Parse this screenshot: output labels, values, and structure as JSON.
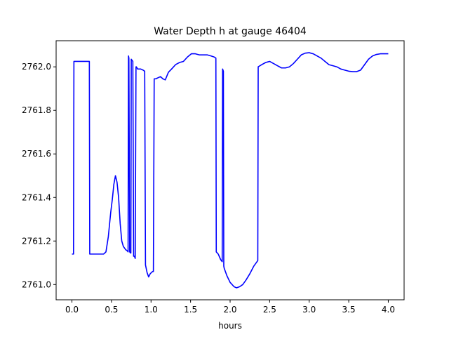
{
  "chart_data": {
    "type": "line",
    "title": "Water Depth h at gauge 46404",
    "xlabel": "hours",
    "ylabel": "",
    "xlim": [
      -0.2,
      4.2
    ],
    "ylim": [
      2760.93,
      2762.12
    ],
    "xticks": [
      0.0,
      0.5,
      1.0,
      1.5,
      2.0,
      2.5,
      3.0,
      3.5,
      4.0
    ],
    "xtick_labels": [
      "0.0",
      "0.5",
      "1.0",
      "1.5",
      "2.0",
      "2.5",
      "3.0",
      "3.5",
      "4.0"
    ],
    "yticks": [
      2761.0,
      2761.2,
      2761.4,
      2761.6,
      2761.8,
      2762.0
    ],
    "ytick_labels": [
      "2761.0",
      "2761.2",
      "2761.4",
      "2761.6",
      "2761.8",
      "2762.0"
    ],
    "grid": false,
    "series": [
      {
        "color": "#0000ff",
        "x": [
          0.0,
          0.02,
          0.025,
          0.05,
          0.1,
          0.15,
          0.2,
          0.22,
          0.225,
          0.25,
          0.3,
          0.35,
          0.4,
          0.43,
          0.46,
          0.49,
          0.51,
          0.53,
          0.55,
          0.57,
          0.59,
          0.61,
          0.63,
          0.65,
          0.68,
          0.7,
          0.71,
          0.715,
          0.72,
          0.73,
          0.74,
          0.745,
          0.75,
          0.76,
          0.77,
          0.78,
          0.79,
          0.8,
          0.81,
          0.815,
          0.82,
          0.825,
          0.83,
          0.84,
          0.85,
          0.87,
          0.9,
          0.92,
          0.93,
          0.95,
          0.97,
          0.99,
          1.02,
          1.03,
          1.04,
          1.06,
          1.09,
          1.12,
          1.15,
          1.18,
          1.22,
          1.26,
          1.31,
          1.36,
          1.41,
          1.46,
          1.51,
          1.56,
          1.61,
          1.66,
          1.71,
          1.76,
          1.8,
          1.82,
          1.825,
          1.85,
          1.88,
          1.9,
          1.905,
          1.91,
          1.915,
          1.92,
          1.925,
          1.96,
          2.0,
          2.05,
          2.08,
          2.12,
          2.16,
          2.2,
          2.25,
          2.3,
          2.35,
          2.355,
          2.4,
          2.45,
          2.5,
          2.55,
          2.6,
          2.65,
          2.7,
          2.75,
          2.8,
          2.85,
          2.9,
          2.95,
          3.0,
          3.05,
          3.1,
          3.15,
          3.2,
          3.25,
          3.3,
          3.35,
          3.4,
          3.45,
          3.5,
          3.55,
          3.6,
          3.65,
          3.7,
          3.75,
          3.8,
          3.85,
          3.9,
          3.95,
          4.0
        ],
        "y": [
          2761.14,
          2761.14,
          2762.025,
          2762.025,
          2762.025,
          2762.025,
          2762.025,
          2762.025,
          2761.14,
          2761.14,
          2761.14,
          2761.14,
          2761.14,
          2761.15,
          2761.22,
          2761.33,
          2761.39,
          2761.46,
          2761.5,
          2761.47,
          2761.4,
          2761.28,
          2761.2,
          2761.175,
          2761.16,
          2761.155,
          2761.15,
          2762.05,
          2762.04,
          2761.15,
          2761.145,
          2761.145,
          2762.035,
          2762.03,
          2762.025,
          2761.13,
          2761.13,
          2761.12,
          2762.0,
          2762.0,
          2761.995,
          2761.995,
          2761.99,
          2761.99,
          2761.99,
          2761.99,
          2761.985,
          2761.98,
          2761.09,
          2761.055,
          2761.035,
          2761.05,
          2761.06,
          2761.06,
          2761.945,
          2761.945,
          2761.95,
          2761.955,
          2761.945,
          2761.94,
          2761.975,
          2761.99,
          2762.01,
          2762.02,
          2762.025,
          2762.045,
          2762.06,
          2762.06,
          2762.055,
          2762.055,
          2762.055,
          2762.05,
          2762.045,
          2762.04,
          2761.15,
          2761.14,
          2761.115,
          2761.105,
          2761.99,
          2761.985,
          2761.98,
          2761.085,
          2761.075,
          2761.04,
          2761.01,
          2760.99,
          2760.985,
          2760.99,
          2761.0,
          2761.02,
          2761.05,
          2761.085,
          2761.11,
          2762.0,
          2762.01,
          2762.02,
          2762.025,
          2762.015,
          2762.005,
          2761.995,
          2761.995,
          2762.0,
          2762.015,
          2762.035,
          2762.055,
          2762.063,
          2762.065,
          2762.06,
          2762.05,
          2762.04,
          2762.025,
          2762.01,
          2762.005,
          2762.0,
          2761.99,
          2761.985,
          2761.98,
          2761.978,
          2761.978,
          2761.985,
          2762.01,
          2762.035,
          2762.05,
          2762.057,
          2762.06,
          2762.06,
          2762.06
        ]
      }
    ]
  }
}
